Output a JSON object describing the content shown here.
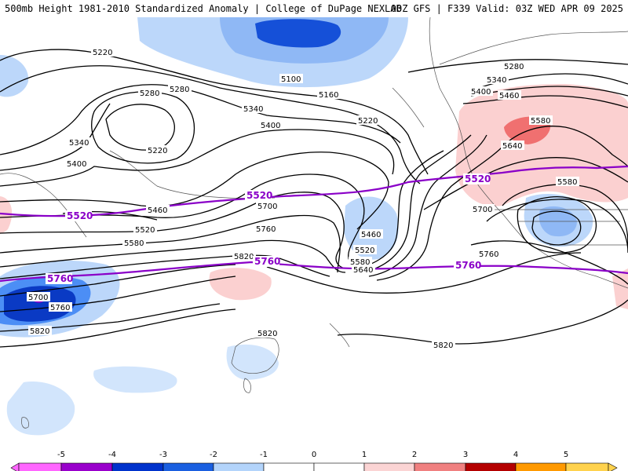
{
  "header": {
    "title": "500mb Height 1981-2010 Standardized Anomaly | College of DuPage NEXLAB",
    "run_info": "00Z GFS | F339 Valid: 03Z WED APR 09 2025"
  },
  "contour_labels": [
    "5220",
    "5280",
    "5220",
    "5100",
    "5160",
    "5220",
    "5280",
    "5340",
    "5400",
    "5460",
    "5340",
    "5400",
    "5460",
    "5520",
    "5580",
    "5700",
    "5460",
    "5520",
    "5580",
    "5640",
    "5760",
    "5820",
    "5760",
    "5820",
    "5820",
    "5820",
    "5580",
    "5640",
    "5700",
    "5760",
    "5700",
    "5760",
    "5820",
    "5580",
    "5520",
    "5760"
  ],
  "purple_labels": [
    "5520",
    "5520",
    "5520",
    "5760",
    "5760",
    "5760"
  ],
  "legend": {
    "ticks": [
      "-5",
      "-4",
      "-3",
      "-2",
      "-1",
      "0",
      "1",
      "2",
      "3",
      "4",
      "5"
    ],
    "colors": [
      "#ff66ff",
      "#9900cc",
      "#0033cc",
      "#1a5fe0",
      "#4c8ef5",
      "#b3d4fb",
      "#ffffff",
      "#fbd4d4",
      "#f08080",
      "#e63232",
      "#b40000",
      "#ff9900",
      "#ffd24d"
    ]
  }
}
